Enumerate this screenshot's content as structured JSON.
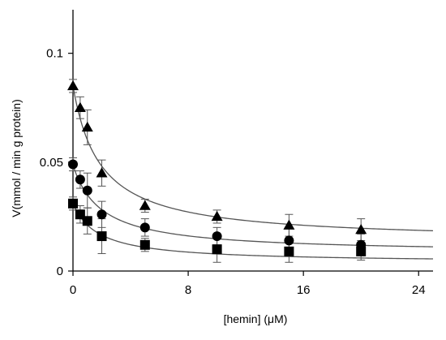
{
  "chart_data": {
    "type": "scatter",
    "xlabel": "[hemin] (μM)",
    "ylabel": "V(mmol / min g protein)",
    "xlim": [
      0,
      25
    ],
    "ylim": [
      0,
      0.12
    ],
    "x_ticks": [
      0,
      8,
      16,
      24
    ],
    "x_tick_labels": [
      "0",
      "8",
      "16",
      "24"
    ],
    "y_ticks": [
      0,
      0.05,
      0.1
    ],
    "y_tick_labels": [
      "0",
      "0.05",
      "0.1"
    ],
    "grid": false,
    "legend": "none",
    "series": [
      {
        "marker": "triangle",
        "x": [
          0,
          0.5,
          1,
          2,
          5,
          10,
          15,
          20
        ],
        "y": [
          0.085,
          0.075,
          0.066,
          0.045,
          0.03,
          0.025,
          0.021,
          0.019
        ],
        "err": [
          0.003,
          0.005,
          0.008,
          0.006,
          0.003,
          0.003,
          0.005,
          0.005
        ],
        "fit": {
          "a": 0.0135,
          "b": 0.0715,
          "k": 1.88
        }
      },
      {
        "marker": "circle",
        "x": [
          0,
          0.5,
          1,
          2,
          5,
          10,
          15,
          20
        ],
        "y": [
          0.049,
          0.042,
          0.037,
          0.026,
          0.02,
          0.016,
          0.014,
          0.012
        ],
        "err": [
          0.003,
          0.004,
          0.008,
          0.006,
          0.004,
          0.004,
          0.006,
          0.005
        ],
        "fit": {
          "a": 0.0082,
          "b": 0.0405,
          "k": 1.95
        }
      },
      {
        "marker": "square",
        "x": [
          0,
          0.5,
          1,
          2,
          5,
          10,
          15,
          20
        ],
        "y": [
          0.031,
          0.026,
          0.023,
          0.016,
          0.012,
          0.01,
          0.009,
          0.009
        ],
        "err": [
          0.003,
          0.004,
          0.006,
          0.008,
          0.003,
          0.006,
          0.005,
          0.004
        ],
        "fit": {
          "a": 0.0038,
          "b": 0.0272,
          "k": 1.75
        }
      }
    ]
  }
}
